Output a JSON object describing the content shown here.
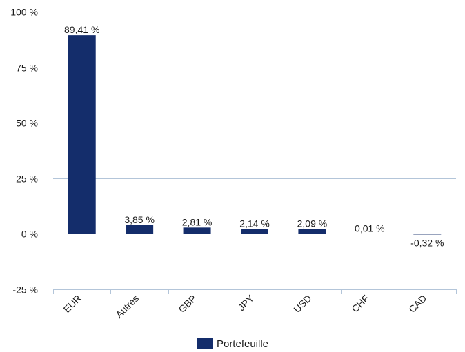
{
  "chart_data": {
    "type": "bar",
    "categories": [
      "EUR",
      "Autres",
      "GBP",
      "JPY",
      "USD",
      "CHF",
      "CAD"
    ],
    "series": [
      {
        "name": "Portefeuille",
        "values": [
          89.41,
          3.85,
          2.81,
          2.14,
          2.09,
          0.01,
          -0.32
        ],
        "labels": [
          "89,41 %",
          "3,85 %",
          "2,81 %",
          "2,14 %",
          "2,09 %",
          "0,01 %",
          "-0,32 %"
        ],
        "color": "#142d6b"
      }
    ],
    "ylim": [
      -25,
      100
    ],
    "yticks": [
      -25,
      0,
      25,
      50,
      75,
      100
    ],
    "ytick_labels": [
      "-25 %",
      "0 %",
      "25 %",
      "50 %",
      "75 %",
      "100 %"
    ],
    "xlabel": "",
    "ylabel": "",
    "grid": true,
    "gridline_color": "#b3c5d9",
    "legend_position": "bottom-center"
  }
}
